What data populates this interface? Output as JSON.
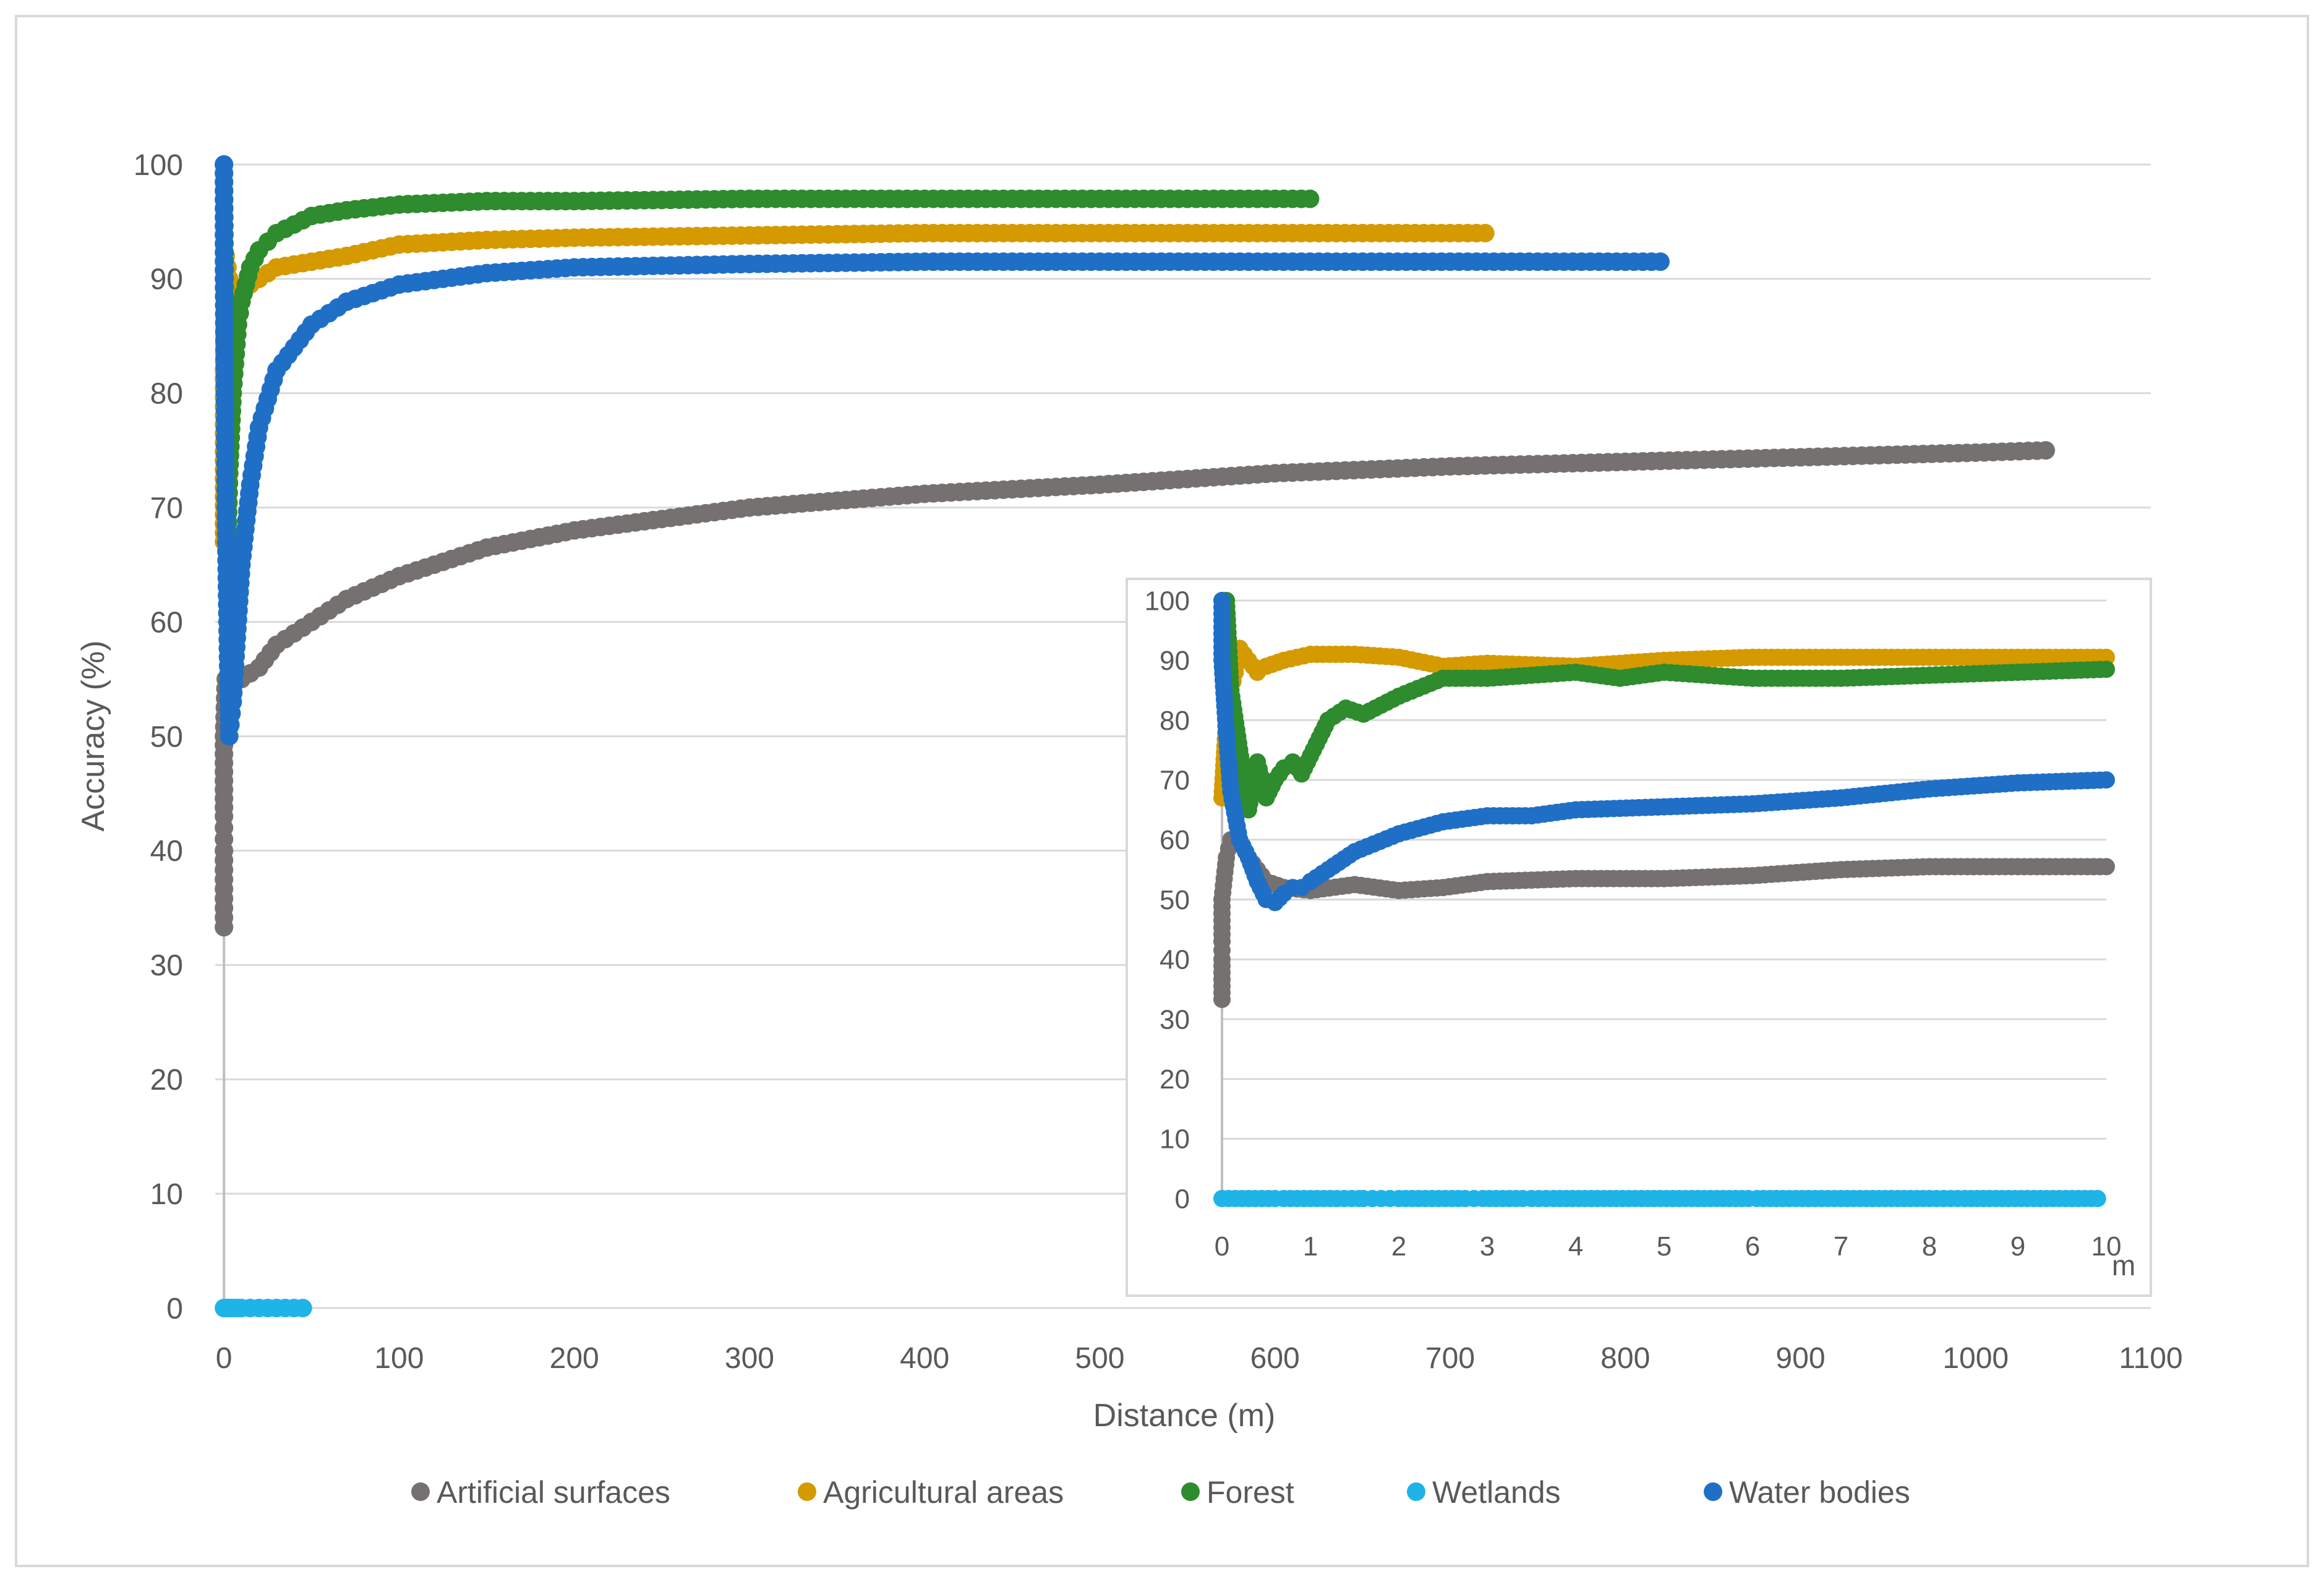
{
  "colors": {
    "artificial": "#767171",
    "agricultural": "#D49A00",
    "forest": "#2E8B2E",
    "wetlands": "#1EB4E8",
    "water": "#1F6FC6",
    "grid": "#D9D9D9",
    "axis": "#BFBFBF",
    "text": "#595959"
  },
  "chart_data": [
    {
      "id": "main",
      "type": "scatter",
      "title": "",
      "xlabel": "Distance (m)",
      "ylabel": "Accuracy (%)",
      "xlim": [
        -5,
        1100
      ],
      "ylim": [
        0,
        100
      ],
      "xticks": [
        0,
        100,
        200,
        300,
        400,
        500,
        600,
        700,
        800,
        900,
        1000,
        1100
      ],
      "xtick_labels": [
        "0",
        "100",
        "200",
        "300",
        "400",
        "500",
        "600",
        "700",
        "800",
        "900",
        "1000",
        "1100"
      ],
      "yticks": [
        0,
        10,
        20,
        30,
        40,
        50,
        60,
        70,
        80,
        90,
        100
      ],
      "ytick_labels": [
        "0",
        "10",
        "20",
        "30",
        "40",
        "50",
        "60",
        "70",
        "80",
        "90",
        "100"
      ],
      "grid": true,
      "series": [
        {
          "name": "Artificial surfaces",
          "color_key": "artificial",
          "x": [
            0,
            0,
            0,
            0,
            1,
            2,
            5,
            10,
            20,
            30,
            50,
            70,
            100,
            150,
            200,
            300,
            400,
            500,
            600,
            700,
            800,
            900,
            1000,
            1040
          ],
          "y": [
            33.3,
            40,
            43,
            50,
            55,
            53,
            54,
            55,
            56,
            58,
            60,
            62,
            64,
            66.5,
            68,
            70,
            71.2,
            72,
            73,
            73.6,
            74,
            74.4,
            74.8,
            75
          ]
        },
        {
          "name": "Agricultural areas",
          "color_key": "agricultural",
          "x": [
            0,
            0,
            1,
            3,
            5,
            10,
            20,
            30,
            50,
            70,
            100,
            150,
            200,
            300,
            400,
            500,
            600,
            700,
            720
          ],
          "y": [
            67,
            82,
            92,
            90,
            89,
            89,
            90,
            91,
            91.5,
            92,
            93,
            93.4,
            93.6,
            93.8,
            94,
            94,
            94,
            94,
            94
          ]
        },
        {
          "name": "Forest",
          "color_key": "forest",
          "x": [
            0,
            1,
            2,
            3,
            5,
            8,
            10,
            15,
            20,
            30,
            50,
            70,
            100,
            150,
            200,
            300,
            400,
            450,
            500,
            600,
            620
          ],
          "y": [
            100,
            77,
            67,
            73,
            80,
            86,
            88,
            91,
            92.5,
            94,
            95.5,
            96,
            96.5,
            96.8,
            96.8,
            97,
            97,
            97,
            97,
            97,
            97
          ]
        },
        {
          "name": "Wetlands",
          "color_key": "wetlands",
          "x": [
            0,
            1,
            2,
            3,
            4,
            6,
            8,
            10,
            15,
            20,
            25,
            30,
            35,
            40,
            45
          ],
          "y": [
            0,
            0,
            0,
            0,
            0,
            0,
            0,
            0,
            0,
            0,
            0,
            0,
            0,
            0,
            0
          ]
        },
        {
          "name": "Water bodies",
          "color_key": "water",
          "x": [
            0,
            0,
            1,
            2,
            3,
            5,
            10,
            15,
            20,
            30,
            50,
            70,
            100,
            150,
            200,
            300,
            400,
            500,
            600,
            700,
            800,
            820
          ],
          "y": [
            100,
            90,
            70,
            60,
            50,
            53,
            65,
            72,
            77,
            82,
            86,
            88,
            89.5,
            90.5,
            91,
            91.3,
            91.5,
            91.5,
            91.5,
            91.5,
            91.5,
            91.5
          ]
        }
      ]
    },
    {
      "id": "inset",
      "type": "scatter",
      "title": "",
      "xlabel": "m",
      "ylabel": "",
      "xlim": [
        0,
        10
      ],
      "ylim": [
        0,
        100
      ],
      "xticks": [
        0,
        1,
        2,
        3,
        4,
        5,
        6,
        7,
        8,
        9,
        10
      ],
      "xtick_labels": [
        "0",
        "1",
        "2",
        "3",
        "4",
        "5",
        "6",
        "7",
        "8",
        "9",
        "10"
      ],
      "yticks": [
        0,
        10,
        20,
        30,
        40,
        50,
        60,
        70,
        80,
        90,
        100
      ],
      "ytick_labels": [
        "0",
        "10",
        "20",
        "30",
        "40",
        "50",
        "60",
        "70",
        "80",
        "90",
        "100"
      ],
      "grid": true,
      "series": [
        {
          "name": "Artificial surfaces",
          "color_key": "artificial",
          "x": [
            0,
            0,
            0,
            0,
            0.05,
            0.1,
            0.2,
            0.3,
            0.4,
            0.5,
            0.7,
            1.0,
            1.5,
            2.0,
            2.5,
            3.0,
            4.0,
            5.0,
            6.0,
            7.0,
            8.0,
            9.0,
            10.0
          ],
          "y": [
            33.3,
            40,
            43,
            50,
            57,
            60,
            60,
            57,
            55,
            53,
            52,
            51.5,
            52.5,
            51.5,
            52,
            53,
            53.5,
            53.5,
            54,
            55,
            55.5,
            55.5,
            55.5
          ]
        },
        {
          "name": "Agricultural areas",
          "color_key": "agricultural",
          "x": [
            0,
            0.05,
            0.1,
            0.15,
            0.2,
            0.3,
            0.4,
            0.5,
            0.7,
            1.0,
            1.5,
            2.0,
            2.5,
            3.0,
            4.0,
            5.0,
            6.0,
            7.0,
            8.0,
            9.0,
            10.0
          ],
          "y": [
            67,
            80,
            85,
            88,
            92,
            90,
            88,
            89,
            90,
            91,
            91,
            90.5,
            89,
            89.5,
            89,
            90,
            90.5,
            90.5,
            90.5,
            90.5,
            90.5
          ]
        },
        {
          "name": "Forest",
          "color_key": "forest",
          "x": [
            0,
            0.05,
            0.1,
            0.2,
            0.3,
            0.4,
            0.5,
            0.6,
            0.7,
            0.8,
            0.9,
            1.0,
            1.2,
            1.4,
            1.6,
            2.0,
            2.5,
            3.0,
            4.0,
            4.5,
            5.0,
            6.0,
            7.0,
            8.0,
            9.0,
            10.0
          ],
          "y": [
            100,
            100,
            85,
            75,
            65,
            73,
            67,
            70,
            72,
            73,
            71,
            74,
            80,
            82,
            81,
            84,
            87,
            87,
            88,
            87,
            88,
            87,
            87,
            87.5,
            88,
            88.5
          ]
        },
        {
          "name": "Wetlands",
          "color_key": "wetlands",
          "x": [
            0,
            0.3,
            0.6,
            0.7,
            1.0,
            1.3,
            1.55,
            1.6,
            1.8,
            1.9,
            2.0,
            2.75,
            2.85,
            2.95,
            3.4,
            3.5,
            3.75,
            5.95,
            6.05,
            7.0,
            8.0,
            8.4,
            8.75,
            9.9
          ],
          "y": [
            0,
            0,
            0,
            0,
            0,
            0,
            0,
            0,
            0,
            0,
            0,
            0,
            0,
            0,
            0,
            0,
            0,
            0,
            0,
            0,
            0,
            0,
            0,
            0
          ]
        },
        {
          "name": "Water bodies",
          "color_key": "water",
          "x": [
            0,
            0,
            0.05,
            0.1,
            0.2,
            0.3,
            0.4,
            0.5,
            0.6,
            0.7,
            0.8,
            0.9,
            1.0,
            1.2,
            1.5,
            2.0,
            2.5,
            3.0,
            3.5,
            4.0,
            5.0,
            6.0,
            7.0,
            8.0,
            9.0,
            10.0
          ],
          "y": [
            100,
            90,
            78,
            68,
            60,
            57,
            53,
            50,
            49.5,
            51,
            52,
            52,
            53,
            55,
            58,
            61,
            63,
            64,
            64,
            65,
            65.5,
            66,
            67,
            68.5,
            69.5,
            70
          ]
        }
      ]
    }
  ],
  "legend": {
    "position": "bottom",
    "items": [
      {
        "label": "Artificial surfaces",
        "color_key": "artificial"
      },
      {
        "label": "Agricultural areas",
        "color_key": "agricultural"
      },
      {
        "label": "Forest",
        "color_key": "forest"
      },
      {
        "label": "Wetlands",
        "color_key": "wetlands"
      },
      {
        "label": "Water bodies",
        "color_key": "water"
      }
    ]
  }
}
